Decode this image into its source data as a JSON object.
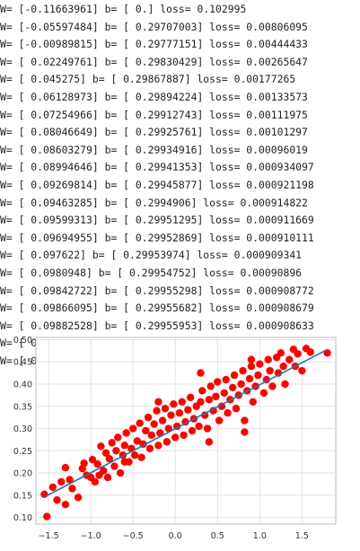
{
  "log_lines": [
    "W= [-0.11663961] b= [ 0.] loss= 0.102995",
    "W= [-0.05597484] b= [ 0.29707003] loss= 0.00806095",
    "W= [-0.00989815] b= [ 0.29777151] loss= 0.00444433",
    "W= [ 0.02249761] b= [ 0.29830429] loss= 0.00265647",
    "W= [ 0.045275] b= [ 0.29867887] loss= 0.00177265",
    "W= [ 0.06128973] b= [ 0.29894224] loss= 0.00133573",
    "W= [ 0.07254966] b= [ 0.29912743] loss= 0.00111975",
    "W= [ 0.08046649] b= [ 0.29925761] loss= 0.00101297",
    "W= [ 0.08603279] b= [ 0.29934916] loss= 0.00096019",
    "W= [ 0.08994646] b= [ 0.29941353] loss= 0.000934097",
    "W= [ 0.09269814] b= [ 0.29945877] loss= 0.000921198",
    "W= [ 0.09463285] b= [ 0.2994906] loss= 0.000914822",
    "W= [ 0.09599313] b= [ 0.29951295] loss= 0.000911669",
    "W= [ 0.09694955] b= [ 0.29952869] loss= 0.000910111",
    "W= [ 0.097622] b= [ 0.29953974] loss= 0.000909341",
    "W= [ 0.0980948] b= [ 0.29954752] loss= 0.00090896",
    "W= [ 0.09842722] b= [ 0.29955298] loss= 0.000908772",
    "W= [ 0.09866095] b= [ 0.29955682] loss= 0.000908679",
    "W= [ 0.09882528] b= [ 0.29955953] loss= 0.000908633",
    "W= [ 0.09894083] b= [ 0.29956144] loss= 0.00090861",
    "W= [ 0.09902207] b= [ 0.29956278] loss= 0.000908599"
  ],
  "chart_data": {
    "type": "scatter",
    "xlim": [
      -1.65,
      1.9
    ],
    "ylim": [
      0.085,
      0.505
    ],
    "x_ticks": [
      -1.5,
      -1.0,
      -0.5,
      0.0,
      0.5,
      1.0,
      1.5
    ],
    "x_tick_labels": [
      "−1.5",
      "−1.0",
      "−0.5",
      "0.0",
      "0.5",
      "1.0",
      "1.5"
    ],
    "y_ticks": [
      0.1,
      0.15,
      0.2,
      0.25,
      0.3,
      0.35,
      0.4,
      0.45,
      0.5
    ],
    "y_tick_labels": [
      "0.10",
      "0.15",
      "0.20",
      "0.25",
      "0.30",
      "0.35",
      "0.40",
      "0.45",
      "0.50"
    ],
    "grid": true,
    "series": [
      {
        "kind": "scatter",
        "color": "#ff0000",
        "points": [
          [
            -1.55,
            0.152
          ],
          [
            -1.52,
            0.102
          ],
          [
            -1.45,
            0.168
          ],
          [
            -1.4,
            0.139
          ],
          [
            -1.3,
            0.129
          ],
          [
            -1.3,
            0.212
          ],
          [
            -1.25,
            0.185
          ],
          [
            -1.22,
            0.165
          ],
          [
            -1.15,
            0.145
          ],
          [
            -1.1,
            0.21
          ],
          [
            -1.08,
            0.222
          ],
          [
            -1.05,
            0.195
          ],
          [
            -1.0,
            0.19
          ],
          [
            -0.98,
            0.23
          ],
          [
            -0.95,
            0.18
          ],
          [
            -0.92,
            0.22
          ],
          [
            -0.88,
            0.26
          ],
          [
            -0.85,
            0.205
          ],
          [
            -0.82,
            0.245
          ],
          [
            -0.8,
            0.19
          ],
          [
            -0.78,
            0.232
          ],
          [
            -0.75,
            0.268
          ],
          [
            -0.72,
            0.215
          ],
          [
            -0.7,
            0.25
          ],
          [
            -0.68,
            0.28
          ],
          [
            -0.65,
            0.2
          ],
          [
            -0.62,
            0.24
          ],
          [
            -0.6,
            0.262
          ],
          [
            -0.58,
            0.29
          ],
          [
            -0.55,
            0.225
          ],
          [
            -0.52,
            0.255
          ],
          [
            -0.5,
            0.3
          ],
          [
            -0.48,
            0.24
          ],
          [
            -0.45,
            0.272
          ],
          [
            -0.42,
            0.312
          ],
          [
            -0.4,
            0.235
          ],
          [
            -0.38,
            0.265
          ],
          [
            -0.35,
            0.295
          ],
          [
            -0.32,
            0.325
          ],
          [
            -0.3,
            0.255
          ],
          [
            -0.28,
            0.285
          ],
          [
            -0.25,
            0.31
          ],
          [
            -0.22,
            0.34
          ],
          [
            -0.2,
            0.262
          ],
          [
            -0.18,
            0.29
          ],
          [
            -0.15,
            0.318
          ],
          [
            -0.12,
            0.345
          ],
          [
            -0.1,
            0.27
          ],
          [
            -0.08,
            0.3
          ],
          [
            -0.05,
            0.33
          ],
          [
            -0.02,
            0.355
          ],
          [
            0.0,
            0.28
          ],
          [
            0.02,
            0.305
          ],
          [
            0.05,
            0.335
          ],
          [
            0.08,
            0.36
          ],
          [
            0.1,
            0.285
          ],
          [
            0.12,
            0.315
          ],
          [
            0.15,
            0.342
          ],
          [
            0.18,
            0.37
          ],
          [
            0.2,
            0.295
          ],
          [
            0.22,
            0.322
          ],
          [
            0.25,
            0.35
          ],
          [
            0.28,
            0.305
          ],
          [
            0.3,
            0.36
          ],
          [
            0.32,
            0.385
          ],
          [
            0.35,
            0.33
          ],
          [
            0.38,
            0.3
          ],
          [
            0.4,
            0.365
          ],
          [
            0.42,
            0.395
          ],
          [
            0.45,
            0.34
          ],
          [
            0.48,
            0.372
          ],
          [
            0.5,
            0.405
          ],
          [
            0.52,
            0.318
          ],
          [
            0.55,
            0.35
          ],
          [
            0.58,
            0.38
          ],
          [
            0.6,
            0.41
          ],
          [
            0.62,
            0.335
          ],
          [
            0.65,
            0.365
          ],
          [
            0.68,
            0.392
          ],
          [
            0.7,
            0.42
          ],
          [
            0.72,
            0.345
          ],
          [
            0.75,
            0.375
          ],
          [
            0.78,
            0.4
          ],
          [
            0.8,
            0.43
          ],
          [
            0.82,
            0.318
          ],
          [
            0.85,
            0.385
          ],
          [
            0.88,
            0.412
          ],
          [
            0.9,
            0.44
          ],
          [
            0.92,
            0.36
          ],
          [
            0.95,
            0.395
          ],
          [
            0.98,
            0.42
          ],
          [
            1.0,
            0.445
          ],
          [
            1.05,
            0.38
          ],
          [
            1.08,
            0.41
          ],
          [
            1.1,
            0.455
          ],
          [
            1.12,
            0.43
          ],
          [
            1.15,
            0.395
          ],
          [
            1.2,
            0.46
          ],
          [
            1.22,
            0.425
          ],
          [
            1.25,
            0.47
          ],
          [
            1.28,
            0.44
          ],
          [
            1.3,
            0.4
          ],
          [
            1.35,
            0.455
          ],
          [
            1.4,
            0.478
          ],
          [
            1.42,
            0.44
          ],
          [
            1.45,
            0.468
          ],
          [
            1.5,
            0.43
          ],
          [
            1.55,
            0.48
          ],
          [
            1.6,
            0.472
          ],
          [
            -0.9,
            0.195
          ],
          [
            -0.6,
            0.225
          ],
          [
            0.4,
            0.27
          ],
          [
            0.3,
            0.425
          ],
          [
            -0.2,
            0.36
          ],
          [
            0.9,
            0.455
          ],
          [
            -1.35,
            0.18
          ],
          [
            1.8,
            0.47
          ],
          [
            0.82,
            0.292
          ]
        ]
      },
      {
        "kind": "line",
        "color": "#1f77b4",
        "W": 0.09902207,
        "b": 0.29956278,
        "x_range": [
          -1.55,
          1.78
        ]
      }
    ]
  }
}
